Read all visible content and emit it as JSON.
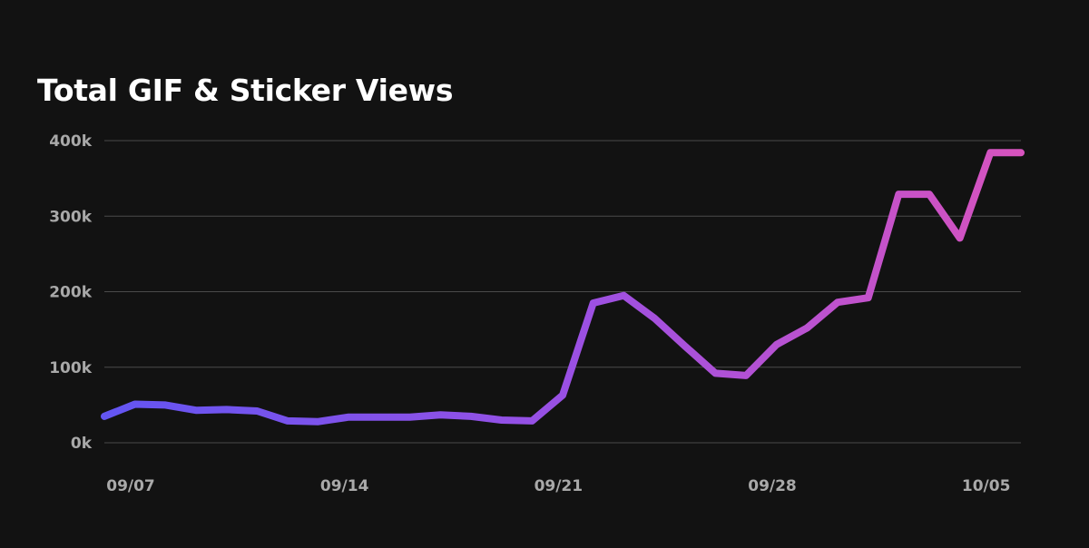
{
  "chart_data": {
    "type": "line",
    "title": "Total GIF & Sticker Views",
    "xlabel": "",
    "ylabel": "",
    "ylim": [
      0,
      400000
    ],
    "y_ticks": [
      {
        "value": 0,
        "label": "0k"
      },
      {
        "value": 100000,
        "label": "100k"
      },
      {
        "value": 200000,
        "label": "200k"
      },
      {
        "value": 300000,
        "label": "300k"
      },
      {
        "value": 400000,
        "label": "400k"
      }
    ],
    "x_ticks": [
      {
        "index": 0,
        "label": "09/07"
      },
      {
        "index": 7,
        "label": "09/14"
      },
      {
        "index": 14,
        "label": "09/21"
      },
      {
        "index": 21,
        "label": "09/28"
      },
      {
        "index": 28,
        "label": "10/05"
      }
    ],
    "grid": true,
    "legend": "none",
    "colors": {
      "line_start": "#6355f2",
      "line_mid": "#9950e4",
      "line_end": "#d753be",
      "grid": "#4a4a4a",
      "tick_text": "#a9a9a9",
      "background": "#121212",
      "title": "#ffffff"
    },
    "series": [
      {
        "name": "Total GIF & Sticker Views",
        "x": [
          "09/07",
          "09/08",
          "09/09",
          "09/10",
          "09/11",
          "09/12",
          "09/13",
          "09/14",
          "09/15",
          "09/16",
          "09/17",
          "09/18",
          "09/19",
          "09/20",
          "09/21",
          "09/22",
          "09/23",
          "09/24",
          "09/25",
          "09/26",
          "09/27",
          "09/28",
          "09/29",
          "09/30",
          "10/01",
          "10/02",
          "10/03",
          "10/04",
          "10/05",
          "10/06",
          "10/07"
        ],
        "values": [
          35000,
          51000,
          50000,
          43000,
          44000,
          42000,
          29000,
          28000,
          34000,
          34000,
          34000,
          37000,
          35000,
          30000,
          29000,
          63000,
          185000,
          195000,
          165000,
          128000,
          92000,
          89000,
          130000,
          152000,
          186000,
          192000,
          329000,
          329000,
          271000,
          384000,
          384000
        ]
      }
    ]
  }
}
